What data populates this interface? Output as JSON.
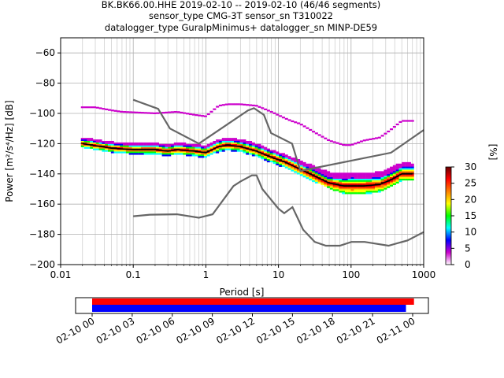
{
  "title_lines": [
    "BK.BK66.00.HHE   2019-02-10 -- 2019-02-10  (46/46 segments)",
    "sensor_type CMG-3T sensor_sn T310022",
    "datalogger_type GuralpMinimus+ datalogger_sn MINP-DE59"
  ],
  "chart_data": [
    {
      "type": "heatmap",
      "title": "BK.BK66.00.HHE   2019-02-10 -- 2019-02-10  (46/46 segments)",
      "xlabel": "Period [s]",
      "ylabel": "Power [m²/s⁴/Hz] [dB]",
      "x_scale": "log",
      "xlim": [
        0.01,
        1000
      ],
      "ylim": [
        -200,
        -50
      ],
      "x_ticks": [
        0.01,
        0.1,
        1,
        10,
        100,
        1000
      ],
      "x_tick_labels": [
        "0.01",
        "0.1",
        "1",
        "10",
        "100",
        "1000"
      ],
      "y_ticks": [
        -200,
        -180,
        -160,
        -140,
        -120,
        -100,
        -80,
        -60
      ],
      "y_tick_labels": [
        "−200",
        "−180",
        "−160",
        "−140",
        "−120",
        "−100",
        "−80",
        "−60"
      ],
      "grid": true,
      "colorbar": {
        "label": "[%]",
        "range": [
          0,
          30
        ],
        "ticks": [
          0,
          5,
          10,
          15,
          20,
          25,
          30
        ],
        "colors": [
          "#ffffff",
          "#cc00cc",
          "#0000ff",
          "#00ffff",
          "#00ff00",
          "#ffff00",
          "#ff8000",
          "#ff0000",
          "#660000"
        ]
      },
      "model_curves": [
        {
          "name": "NHNM",
          "points": [
            [
              0.1,
              -91
            ],
            [
              0.22,
              -97
            ],
            [
              0.32,
              -110
            ],
            [
              0.8,
              -120
            ],
            [
              3.8,
              -98
            ],
            [
              4.6,
              -96.5
            ],
            [
              6.3,
              -101
            ],
            [
              7.9,
              -113
            ],
            [
              15.4,
              -120
            ],
            [
              20,
              -138
            ],
            [
              354.8,
              -126
            ],
            [
              1000,
              -111
            ]
          ]
        },
        {
          "name": "NLNM",
          "points": [
            [
              0.1,
              -168
            ],
            [
              0.17,
              -167
            ],
            [
              0.4,
              -166.7
            ],
            [
              0.8,
              -169
            ],
            [
              1.24,
              -166.7
            ],
            [
              2.4,
              -148
            ],
            [
              3,
              -145
            ],
            [
              4.3,
              -141
            ],
            [
              5,
              -141
            ],
            [
              6,
              -150
            ],
            [
              10,
              -163
            ],
            [
              12,
              -166
            ],
            [
              15.6,
              -162
            ],
            [
              21.9,
              -177
            ],
            [
              31.6,
              -185
            ],
            [
              45,
              -187.5
            ],
            [
              70,
              -187.5
            ],
            [
              101,
              -185
            ],
            [
              154,
              -185
            ],
            [
              328,
              -187.5
            ],
            [
              600,
              -184
            ],
            [
              1000,
              -178.5
            ]
          ]
        }
      ],
      "mode_curve": [
        [
          0.02,
          -120
        ],
        [
          0.05,
          -123
        ],
        [
          0.1,
          -124
        ],
        [
          0.2,
          -124
        ],
        [
          0.3,
          -125
        ],
        [
          0.4,
          -124
        ],
        [
          0.7,
          -125
        ],
        [
          1,
          -126
        ],
        [
          1.5,
          -122
        ],
        [
          2,
          -121
        ],
        [
          3,
          -122
        ],
        [
          5,
          -125
        ],
        [
          8,
          -129
        ],
        [
          12,
          -132
        ],
        [
          20,
          -137
        ],
        [
          30,
          -141
        ],
        [
          50,
          -146
        ],
        [
          80,
          -148
        ],
        [
          150,
          -148
        ],
        [
          250,
          -147
        ],
        [
          350,
          -144
        ],
        [
          500,
          -140
        ],
        [
          700,
          -140
        ]
      ],
      "upper_band": [
        [
          0.02,
          -96
        ],
        [
          0.03,
          -96
        ],
        [
          0.05,
          -98
        ],
        [
          0.07,
          -99
        ],
        [
          0.2,
          -100
        ],
        [
          0.4,
          -99
        ],
        [
          0.7,
          -101
        ],
        [
          1,
          -102
        ],
        [
          1.5,
          -95
        ],
        [
          2,
          -94
        ],
        [
          3,
          -94
        ],
        [
          5,
          -95
        ],
        [
          8,
          -99
        ],
        [
          12,
          -103
        ],
        [
          15,
          -105
        ],
        [
          20,
          -107
        ],
        [
          30,
          -112
        ],
        [
          50,
          -118
        ],
        [
          80,
          -121
        ],
        [
          100,
          -121
        ],
        [
          150,
          -118
        ],
        [
          250,
          -116
        ],
        [
          350,
          -111
        ],
        [
          500,
          -105
        ],
        [
          700,
          -105
        ]
      ],
      "spread_upper_offset": [
        [
          0.02,
          2
        ],
        [
          10,
          3
        ],
        [
          50,
          3
        ],
        [
          100,
          5
        ],
        [
          300,
          4
        ],
        [
          700,
          4
        ]
      ],
      "spread_lower_offset": [
        [
          0.02,
          3
        ],
        [
          10,
          4
        ],
        [
          50,
          6
        ],
        [
          100,
          8
        ],
        [
          300,
          7
        ],
        [
          700,
          6
        ]
      ]
    },
    {
      "type": "bar",
      "title": "",
      "x_tick_labels": [
        "02-10 00",
        "02-10 03",
        "02-10 06",
        "02-10 09",
        "02-10 12",
        "02-10 15",
        "02-10 18",
        "02-10 21",
        "02-11 00"
      ],
      "series": [
        {
          "color": "#ff0000",
          "start_hour": 0,
          "end_hour": 24.1
        },
        {
          "color": "#0000ff",
          "start_hour": 0,
          "end_hour": 23.5
        }
      ]
    }
  ]
}
